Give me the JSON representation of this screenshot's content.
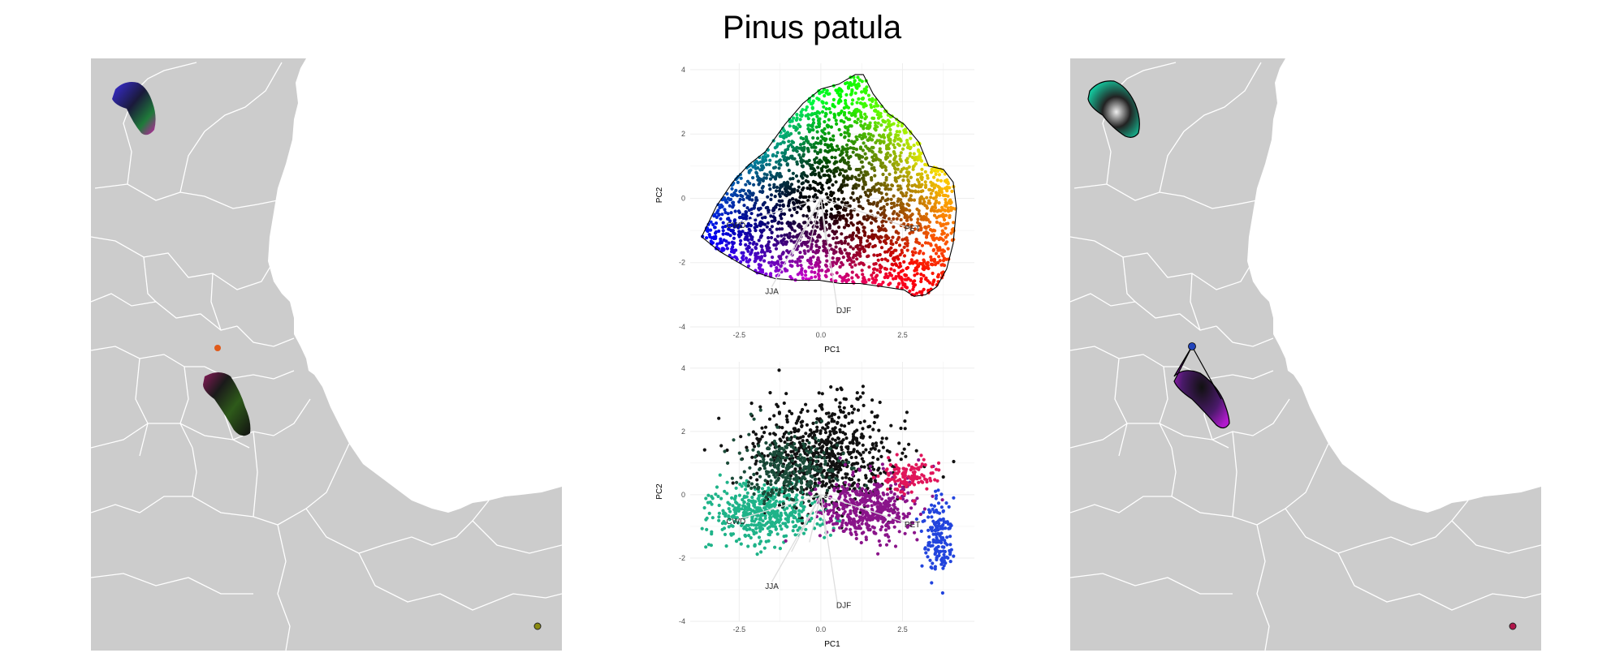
{
  "figure": {
    "title": "Pinus patula"
  },
  "colors": {
    "land": "#cccccc",
    "borders": "#ffffff",
    "sea": "#ffffff",
    "grid": "#eeeeee",
    "loadings": "#dddddd",
    "hull": "#000000"
  },
  "icons": {
    "map_left": "map-icon",
    "map_right": "map-icon"
  },
  "chart_data": [
    {
      "type": "scatter",
      "panel": "top",
      "title": "",
      "xlabel": "PC1",
      "ylabel": "PC2",
      "xlim": [
        -4,
        4.7
      ],
      "ylim": [
        -4,
        4.2
      ],
      "xticks": [
        -2.5,
        0.0,
        2.5
      ],
      "xtick_labels": [
        "-2.5",
        "0.0",
        "2.5"
      ],
      "yticks": [
        -4,
        -2,
        0,
        2,
        4
      ],
      "ytick_labels": [
        "-4",
        "-2",
        "0",
        "2",
        "4"
      ],
      "grid": true,
      "coloring": "position in PCA space (hue by angle, brightness by distance from centre)",
      "hull": [
        [
          -3.65,
          -1.2
        ],
        [
          -3.2,
          -0.25
        ],
        [
          -2.7,
          0.5
        ],
        [
          -2.2,
          1.05
        ],
        [
          -1.7,
          1.45
        ],
        [
          -1.1,
          2.3
        ],
        [
          -0.55,
          2.95
        ],
        [
          0.0,
          3.4
        ],
        [
          0.55,
          3.55
        ],
        [
          1.05,
          3.85
        ],
        [
          1.3,
          3.85
        ],
        [
          1.6,
          3.25
        ],
        [
          2.05,
          2.65
        ],
        [
          2.55,
          2.3
        ],
        [
          3.0,
          1.75
        ],
        [
          3.3,
          1.0
        ],
        [
          3.75,
          0.9
        ],
        [
          4.05,
          0.5
        ],
        [
          4.15,
          -0.3
        ],
        [
          4.05,
          -1.4
        ],
        [
          3.85,
          -2.2
        ],
        [
          3.55,
          -2.75
        ],
        [
          3.2,
          -3.0
        ],
        [
          2.85,
          -3.05
        ],
        [
          2.55,
          -2.85
        ],
        [
          1.9,
          -2.75
        ],
        [
          1.2,
          -2.65
        ],
        [
          0.6,
          -2.65
        ],
        [
          -0.05,
          -2.55
        ],
        [
          -0.7,
          -2.55
        ],
        [
          -1.4,
          -2.5
        ],
        [
          -2.0,
          -2.3
        ],
        [
          -2.6,
          -1.95
        ],
        [
          -3.1,
          -1.65
        ],
        [
          -3.65,
          -1.2
        ]
      ],
      "loadings": [
        {
          "label": "CWD",
          "x": -2.6,
          "y": -0.8,
          "lx": -2.6,
          "ly": -0.85
        },
        {
          "label": "PET",
          "x": 2.8,
          "y": -0.95,
          "lx": 2.8,
          "ly": -0.95
        },
        {
          "label": "JJA",
          "x": -1.5,
          "y": -2.75,
          "lx": -1.5,
          "ly": -2.9
        },
        {
          "label": "DJF",
          "x": 0.5,
          "y": -3.4,
          "lx": 0.7,
          "ly": -3.5
        },
        {
          "label": "",
          "x": -0.9,
          "y": -1.8,
          "lx": null,
          "ly": null
        },
        {
          "label": "",
          "x": 0.15,
          "y": -1.3,
          "lx": null,
          "ly": null
        },
        {
          "label": "",
          "x": -0.35,
          "y": -1.5,
          "lx": null,
          "ly": null
        }
      ]
    },
    {
      "type": "scatter",
      "panel": "bottom",
      "title": "",
      "xlabel": "PC1",
      "ylabel": "PC2",
      "xlim": [
        -4,
        4.7
      ],
      "ylim": [
        -4,
        4.2
      ],
      "xticks": [
        -2.5,
        0.0,
        2.5
      ],
      "xtick_labels": [
        "-2.5",
        "0.0",
        "2.5"
      ],
      "yticks": [
        -4,
        -2,
        0,
        2,
        4
      ],
      "ytick_labels": [
        "-4",
        "-2",
        "0",
        "2",
        "4"
      ],
      "grid": true,
      "clusters": [
        {
          "color": "#111111",
          "cx": 0.1,
          "cy": 1.3,
          "rx": 1.9,
          "ry": 1.6,
          "n": 700
        },
        {
          "color": "#1fb389",
          "cx": -1.8,
          "cy": -0.6,
          "rx": 1.6,
          "ry": 0.9,
          "n": 450
        },
        {
          "color": "#1a4a38",
          "cx": -1.0,
          "cy": 0.8,
          "rx": 1.4,
          "ry": 1.0,
          "n": 300
        },
        {
          "color": "#8a148a",
          "cx": 1.4,
          "cy": -0.4,
          "rx": 1.4,
          "ry": 0.9,
          "n": 450
        },
        {
          "color": "#e0155a",
          "cx": 2.7,
          "cy": 0.6,
          "rx": 0.7,
          "ry": 0.5,
          "n": 120
        },
        {
          "color": "#2244dd",
          "cx": 3.6,
          "cy": -1.3,
          "rx": 0.45,
          "ry": 1.2,
          "n": 160
        }
      ],
      "loadings": [
        {
          "label": "CWD",
          "x": -2.6,
          "y": -0.8,
          "lx": -2.6,
          "ly": -0.85
        },
        {
          "label": "PET",
          "x": 2.8,
          "y": -0.95,
          "lx": 2.8,
          "ly": -0.95
        },
        {
          "label": "JJA",
          "x": -1.5,
          "y": -2.75,
          "lx": -1.5,
          "ly": -2.9
        },
        {
          "label": "DJF",
          "x": 0.5,
          "y": -3.4,
          "lx": 0.7,
          "ly": -3.5
        },
        {
          "label": "",
          "x": -0.9,
          "y": -1.8,
          "lx": null,
          "ly": null
        },
        {
          "label": "",
          "x": 0.15,
          "y": -1.3,
          "lx": null,
          "ly": null
        },
        {
          "label": "",
          "x": -0.35,
          "y": -1.5,
          "lx": null,
          "ly": null
        }
      ]
    }
  ]
}
